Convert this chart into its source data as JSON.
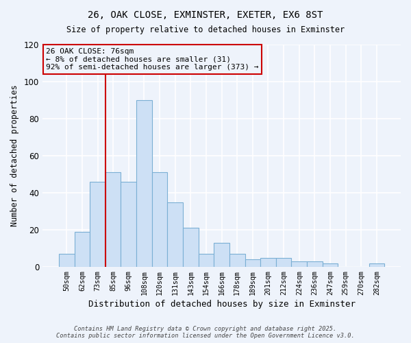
{
  "title": "26, OAK CLOSE, EXMINSTER, EXETER, EX6 8ST",
  "subtitle": "Size of property relative to detached houses in Exminster",
  "xlabel": "Distribution of detached houses by size in Exminster",
  "ylabel": "Number of detached properties",
  "bar_labels": [
    "50sqm",
    "62sqm",
    "73sqm",
    "85sqm",
    "96sqm",
    "108sqm",
    "120sqm",
    "131sqm",
    "143sqm",
    "154sqm",
    "166sqm",
    "178sqm",
    "189sqm",
    "201sqm",
    "212sqm",
    "224sqm",
    "236sqm",
    "247sqm",
    "259sqm",
    "270sqm",
    "282sqm"
  ],
  "bar_values": [
    7,
    19,
    46,
    51,
    46,
    90,
    51,
    35,
    21,
    7,
    13,
    7,
    4,
    5,
    5,
    3,
    3,
    2,
    0,
    0,
    2
  ],
  "bar_color": "#cde0f5",
  "bar_edge_color": "#7bafd4",
  "vline_x_index": 2.5,
  "vline_color": "#cc0000",
  "annotation_title": "26 OAK CLOSE: 76sqm",
  "annotation_line1": "← 8% of detached houses are smaller (31)",
  "annotation_line2": "92% of semi-detached houses are larger (373) →",
  "annotation_box_color": "#cc0000",
  "ylim": [
    0,
    120
  ],
  "yticks": [
    0,
    20,
    40,
    60,
    80,
    100,
    120
  ],
  "footnote1": "Contains HM Land Registry data © Crown copyright and database right 2025.",
  "footnote2": "Contains public sector information licensed under the Open Government Licence v3.0.",
  "background_color": "#eef3fb",
  "grid_color": "#ffffff"
}
